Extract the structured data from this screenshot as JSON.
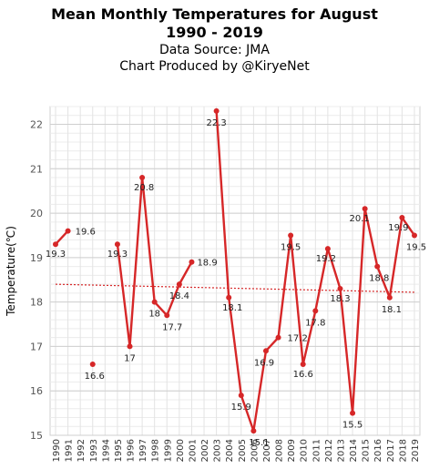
{
  "chart_data": {
    "type": "line",
    "title": "Mean Monthly Temperatures for August",
    "subtitle_years": "1990 - 2019",
    "source": "Data Source: JMA",
    "credit": "Chart Produced by @KiryeNet",
    "xlabel": "",
    "ylabel": "Temperature(℃)",
    "ylim": [
      15,
      22.4
    ],
    "yticks": [
      15,
      16,
      17,
      18,
      19,
      20,
      21,
      22
    ],
    "grid": true,
    "categories": [
      "1990",
      "1991",
      "1992",
      "1993",
      "1994",
      "1995",
      "1996",
      "1997",
      "1998",
      "1999",
      "2000",
      "2001",
      "2002",
      "2003",
      "2004",
      "2005",
      "2006",
      "2007",
      "2008",
      "2009",
      "2010",
      "2011",
      "2012",
      "2013",
      "2014",
      "2015",
      "2016",
      "2017",
      "2018",
      "2019"
    ],
    "series": [
      {
        "color": "#d62728",
        "values": [
          19.3,
          19.6,
          null,
          16.6,
          null,
          19.3,
          17.0,
          20.8,
          18.0,
          17.7,
          18.4,
          18.9,
          null,
          22.3,
          18.1,
          15.9,
          15.1,
          16.9,
          17.2,
          19.5,
          16.6,
          17.8,
          19.2,
          18.3,
          15.5,
          20.1,
          18.8,
          18.1,
          19.9,
          19.5
        ],
        "labels": [
          "19.3",
          "19.6",
          "",
          "16.6",
          "",
          "19.3",
          "17",
          "20.8",
          "18",
          "17.7",
          "18.4",
          "18.9",
          "",
          "22.3",
          "18.1",
          "15.9",
          "15.1",
          "16.9",
          "17.2",
          "19.5",
          "16.6",
          "17.8",
          "19.2",
          "18.3",
          "15.5",
          "20.1",
          "18.8",
          "18.1",
          "19.9",
          "19.5"
        ]
      }
    ],
    "trend": {
      "color": "#d62728",
      "start": 18.4,
      "end": 18.22
    }
  }
}
